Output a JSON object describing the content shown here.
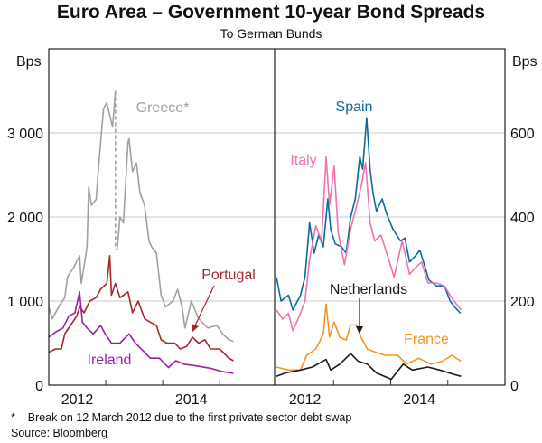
{
  "title": "Euro Area – Government 10-year Bond Spreads",
  "subtitle": "To German Bunds",
  "footnote": "*    Break on 12 March 2012 due to the first private sector debt swap",
  "source": "Source: Bloomberg",
  "chart_data": [
    {
      "type": "line",
      "panel": "left",
      "ylabel": "Bps",
      "ylim": [
        0,
        4000
      ],
      "yticks": [
        0,
        1000,
        2000,
        3000
      ],
      "ytick_labels": [
        "0",
        "1 000",
        "2 000",
        "3 000"
      ],
      "xlim": [
        2011,
        2014.9
      ],
      "xticks": [
        2012,
        2013,
        2014
      ],
      "xtick_labels": [
        {
          "label": "2012",
          "at": 2011.5
        },
        {
          "label": "2014",
          "at": 2013.5
        }
      ],
      "grid": true,
      "series": [
        {
          "name": "Greece*",
          "color": "#a0a0a0",
          "break_at": 2012.19,
          "label_pos": "top",
          "x": [
            2011.0,
            2011.06,
            2011.2,
            2011.28,
            2011.33,
            2011.43,
            2011.54,
            2011.57,
            2011.67,
            2011.7,
            2011.75,
            2011.83,
            2011.88,
            2011.96,
            2012.02,
            2012.07,
            2012.12,
            2012.17,
            2012.2,
            2012.25,
            2012.31,
            2012.39,
            2012.41,
            2012.47,
            2012.54,
            2012.6,
            2012.68,
            2012.76,
            2012.81,
            2012.89,
            2012.97,
            2013.05,
            2013.18,
            2013.26,
            2013.34,
            2013.39,
            2013.5,
            2013.63,
            2013.79,
            2013.95,
            2014.05,
            2014.16,
            2014.24
          ],
          "y": [
            930,
            790,
            960,
            1040,
            1290,
            1390,
            1540,
            1210,
            1640,
            2360,
            2140,
            2210,
            2640,
            3290,
            3360,
            3210,
            3070,
            3500,
            1610,
            2000,
            1930,
            2890,
            2930,
            2540,
            2640,
            2290,
            2140,
            1710,
            1640,
            1570,
            1070,
            930,
            1000,
            1140,
            930,
            680,
            1000,
            790,
            680,
            710,
            610,
            540,
            520
          ]
        },
        {
          "name": "Portugal",
          "color": "#a3282c",
          "x": [
            2011.0,
            2011.12,
            2011.22,
            2011.28,
            2011.38,
            2011.49,
            2011.54,
            2011.62,
            2011.72,
            2011.83,
            2011.91,
            2012.02,
            2012.07,
            2012.1,
            2012.17,
            2012.25,
            2012.39,
            2012.47,
            2012.57,
            2012.68,
            2012.78,
            2012.89,
            2012.97,
            2013.07,
            2013.21,
            2013.31,
            2013.42,
            2013.52,
            2013.63,
            2013.74,
            2013.84,
            2014.0,
            2014.16,
            2014.24
          ],
          "y": [
            390,
            430,
            430,
            610,
            710,
            820,
            930,
            860,
            1000,
            1040,
            1140,
            1210,
            1540,
            1070,
            1210,
            1040,
            1110,
            860,
            1000,
            790,
            750,
            710,
            540,
            500,
            500,
            430,
            460,
            570,
            500,
            540,
            430,
            430,
            320,
            290
          ]
        },
        {
          "name": "Ireland",
          "color": "#9b1fa3",
          "x": [
            2011.0,
            2011.14,
            2011.25,
            2011.35,
            2011.46,
            2011.54,
            2011.59,
            2011.67,
            2011.78,
            2011.91,
            2011.99,
            2012.1,
            2012.25,
            2012.41,
            2012.52,
            2012.68,
            2012.78,
            2012.94,
            2013.1,
            2013.23,
            2013.37,
            2013.58,
            2013.84,
            2014.05,
            2014.24
          ],
          "y": [
            570,
            640,
            680,
            820,
            860,
            1110,
            750,
            680,
            610,
            710,
            610,
            500,
            500,
            610,
            500,
            390,
            320,
            320,
            210,
            290,
            250,
            230,
            200,
            160,
            140
          ]
        }
      ]
    },
    {
      "type": "line",
      "panel": "right",
      "ylabel": "Bps",
      "ylim": [
        0,
        800
      ],
      "yticks": [
        0,
        200,
        400,
        600
      ],
      "ytick_labels": [
        "0",
        "200",
        "400",
        "600"
      ],
      "xlim": [
        2011,
        2015
      ],
      "xticks": [
        2012,
        2013,
        2014
      ],
      "xtick_labels": [
        {
          "label": "2012",
          "at": 2011.5
        },
        {
          "label": "2014",
          "at": 2013.5
        }
      ],
      "grid": true,
      "series": [
        {
          "name": "Spain",
          "color": "#0a6a9e",
          "x": [
            2011.0,
            2011.08,
            2011.21,
            2011.29,
            2011.42,
            2011.5,
            2011.58,
            2011.66,
            2011.74,
            2011.82,
            2011.9,
            2011.95,
            2012.03,
            2012.14,
            2012.22,
            2012.3,
            2012.38,
            2012.46,
            2012.51,
            2012.58,
            2012.64,
            2012.69,
            2012.75,
            2012.85,
            2012.93,
            2013.04,
            2013.17,
            2013.25,
            2013.33,
            2013.43,
            2013.51,
            2013.59,
            2013.67,
            2013.8,
            2013.94,
            2014.04,
            2014.12,
            2014.22
          ],
          "y": [
            257,
            200,
            214,
            179,
            214,
            257,
            386,
            314,
            357,
            329,
            443,
            371,
            336,
            329,
            314,
            400,
            443,
            543,
            514,
            636,
            514,
            457,
            414,
            443,
            407,
            371,
            343,
            350,
            293,
            307,
            321,
            286,
            250,
            236,
            236,
            200,
            186,
            171
          ]
        },
        {
          "name": "Italy",
          "color": "#f072b0",
          "x": [
            2011.0,
            2011.11,
            2011.21,
            2011.29,
            2011.42,
            2011.5,
            2011.58,
            2011.69,
            2011.79,
            2011.87,
            2011.93,
            2012.01,
            2012.08,
            2012.19,
            2012.3,
            2012.38,
            2012.48,
            2012.56,
            2012.64,
            2012.72,
            2012.83,
            2012.93,
            2013.06,
            2013.2,
            2013.33,
            2013.43,
            2013.54,
            2013.65,
            2013.8,
            2013.94,
            2014.07,
            2014.23
          ],
          "y": [
            179,
            157,
            171,
            129,
            171,
            200,
            300,
            379,
            343,
            543,
            429,
            521,
            364,
            286,
            371,
            414,
            471,
            529,
            386,
            343,
            357,
            314,
            257,
            343,
            264,
            279,
            293,
            243,
            243,
            236,
            207,
            179
          ]
        },
        {
          "name": "France",
          "color": "#f7941d",
          "x": [
            2011.0,
            2011.21,
            2011.42,
            2011.53,
            2011.69,
            2011.82,
            2011.87,
            2011.93,
            2012.01,
            2012.11,
            2012.22,
            2012.3,
            2012.4,
            2012.48,
            2012.59,
            2012.72,
            2012.9,
            2013.12,
            2013.28,
            2013.49,
            2013.7,
            2013.91,
            2014.07,
            2014.23
          ],
          "y": [
            43,
            36,
            36,
            71,
            86,
            121,
            193,
            114,
            150,
            114,
            107,
            143,
            143,
            114,
            86,
            79,
            71,
            71,
            50,
            64,
            50,
            57,
            71,
            57
          ]
        },
        {
          "name": "Netherlands",
          "color": "#1a1a1a",
          "x": [
            2011.0,
            2011.16,
            2011.42,
            2011.63,
            2011.87,
            2011.95,
            2012.11,
            2012.3,
            2012.43,
            2012.59,
            2012.75,
            2013.01,
            2013.22,
            2013.38,
            2013.65,
            2013.86,
            2014.12,
            2014.23
          ],
          "y": [
            21,
            29,
            36,
            43,
            61,
            36,
            50,
            75,
            57,
            50,
            29,
            14,
            50,
            36,
            43,
            36,
            25,
            21
          ]
        }
      ]
    }
  ]
}
